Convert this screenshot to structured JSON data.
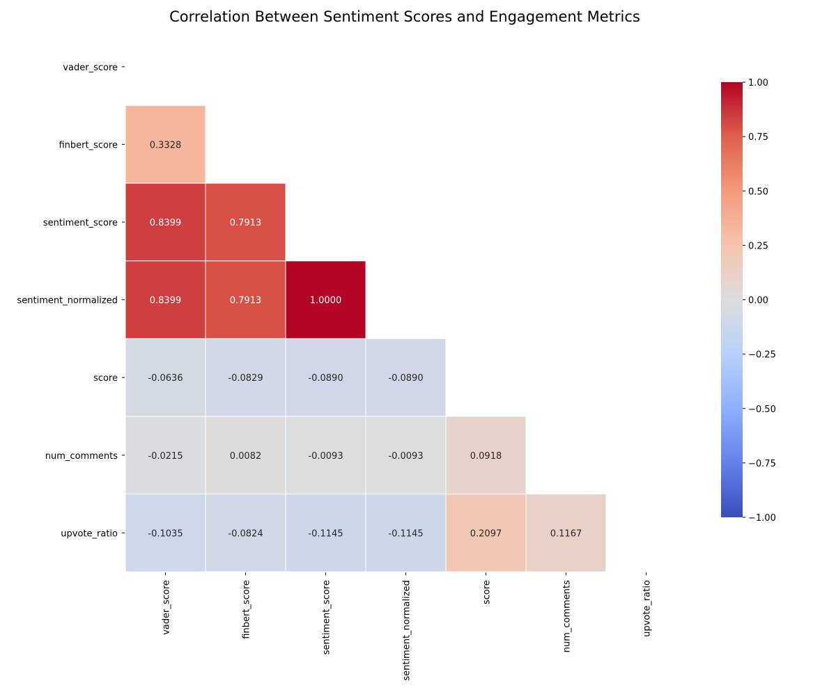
{
  "chart_data": {
    "type": "heatmap",
    "title": "Correlation Between Sentiment Scores and Engagement Metrics",
    "xlabel": "",
    "ylabel": "",
    "rows": [
      "vader_score",
      "finbert_score",
      "sentiment_score",
      "sentiment_normalized",
      "score",
      "num_comments",
      "upvote_ratio"
    ],
    "columns": [
      "vader_score",
      "finbert_score",
      "sentiment_score",
      "sentiment_normalized",
      "score",
      "num_comments",
      "upvote_ratio"
    ],
    "mask": "upper-triangle-including-diagonal",
    "values": [
      [
        null,
        null,
        null,
        null,
        null,
        null,
        null
      ],
      [
        0.3328,
        null,
        null,
        null,
        null,
        null,
        null
      ],
      [
        0.8399,
        0.7913,
        null,
        null,
        null,
        null,
        null
      ],
      [
        0.8399,
        0.7913,
        1.0,
        null,
        null,
        null,
        null
      ],
      [
        -0.0636,
        -0.0829,
        -0.089,
        -0.089,
        null,
        null,
        null
      ],
      [
        -0.0215,
        0.0082,
        -0.0093,
        -0.0093,
        0.0918,
        null,
        null
      ],
      [
        -0.1035,
        -0.0824,
        -0.1145,
        -0.1145,
        0.2097,
        0.1167,
        null
      ]
    ],
    "annotation_format": "0.0000",
    "colormap": "coolwarm",
    "colorbar": {
      "vmin": -1.0,
      "vmax": 1.0,
      "ticks": [
        1.0,
        0.75,
        0.5,
        0.25,
        0.0,
        -0.25,
        -0.5,
        -0.75,
        -1.0
      ],
      "tick_labels": [
        "1.00",
        "0.75",
        "0.50",
        "0.25",
        "0.00",
        "−0.25",
        "−0.50",
        "−0.75",
        "−1.00"
      ]
    },
    "grid": false,
    "legend": "colorbar-right"
  }
}
